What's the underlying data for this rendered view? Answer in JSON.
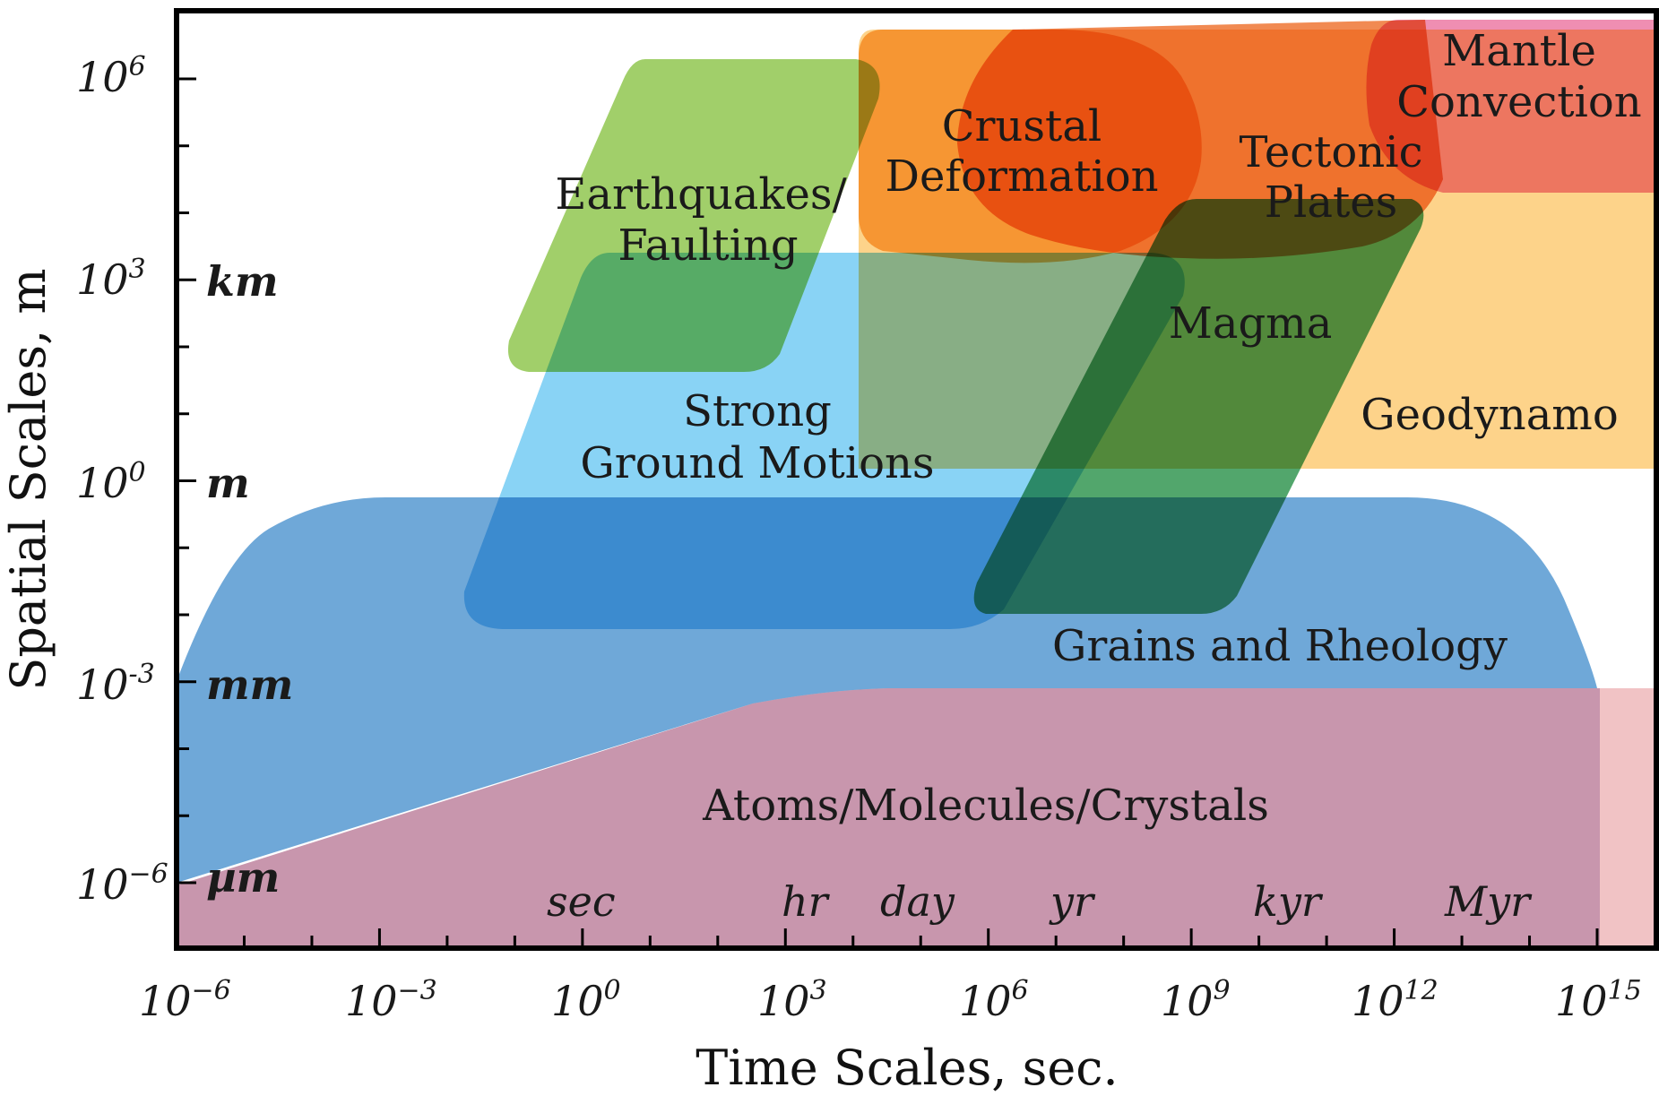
{
  "axes": {
    "x_title": "Time Scales, sec.",
    "y_title": "Spatial Scales, m",
    "x_ticks": [
      {
        "base": "10",
        "exp": "−6",
        "value": -6
      },
      {
        "base": "10",
        "exp": "−3",
        "value": -3
      },
      {
        "base": "10",
        "exp": "0",
        "value": 0
      },
      {
        "base": "10",
        "exp": "3",
        "value": 3
      },
      {
        "base": "10",
        "exp": "6",
        "value": 6
      },
      {
        "base": "10",
        "exp": "9",
        "value": 9
      },
      {
        "base": "10",
        "exp": "12",
        "value": 12
      },
      {
        "base": "10",
        "exp": "15",
        "value": 15
      }
    ],
    "y_ticks": [
      {
        "base": "10",
        "exp": "6",
        "value": 6
      },
      {
        "base": "10",
        "exp": "3",
        "value": 3
      },
      {
        "base": "10",
        "exp": "0",
        "value": 0
      },
      {
        "base": "10",
        "exp": "-3",
        "value": -3
      },
      {
        "base": "10",
        "exp": "−6",
        "value": -6
      }
    ],
    "y_units": [
      "km",
      "m",
      "mm",
      "µm"
    ],
    "x_units": [
      "sec",
      "hr",
      "day",
      "yr",
      "kyr",
      "Myr"
    ],
    "scale": "log-log"
  },
  "regions": [
    {
      "name": "Atoms/Molecules/Crystals",
      "color": "#c896ad"
    },
    {
      "name": "Grains and Rheology",
      "color": "#6fa8d8"
    },
    {
      "name": "Strong Ground Motions",
      "color": "#7fd0f5"
    },
    {
      "name": "Earthquakes/ Faulting",
      "color": "#9ccd62"
    },
    {
      "name": "Crustal Deformation",
      "color": "#f8b155"
    },
    {
      "name": "Tectonic Plates",
      "color": "#ef7a3a"
    },
    {
      "name": "Magma",
      "color": "#3a9a58"
    },
    {
      "name": "Geodynamo",
      "color": "#fdd38a"
    },
    {
      "name": "Mantle Convection",
      "color": "#ee82aa"
    }
  ],
  "labels": {
    "mantle_1": "Mantle",
    "mantle_2": "Convection",
    "crustal_1": "Crustal",
    "crustal_2": "Deformation",
    "tectonic_1": "Tectonic",
    "tectonic_2": "Plates",
    "eq_1": "Earthquakes/",
    "eq_2": "Faulting",
    "magma": "Magma",
    "strong_1": "Strong",
    "strong_2": "Ground Motions",
    "geodynamo": "Geodynamo",
    "grains": "Grains and Rheology",
    "atoms": "Atoms/Molecules/Crystals"
  }
}
